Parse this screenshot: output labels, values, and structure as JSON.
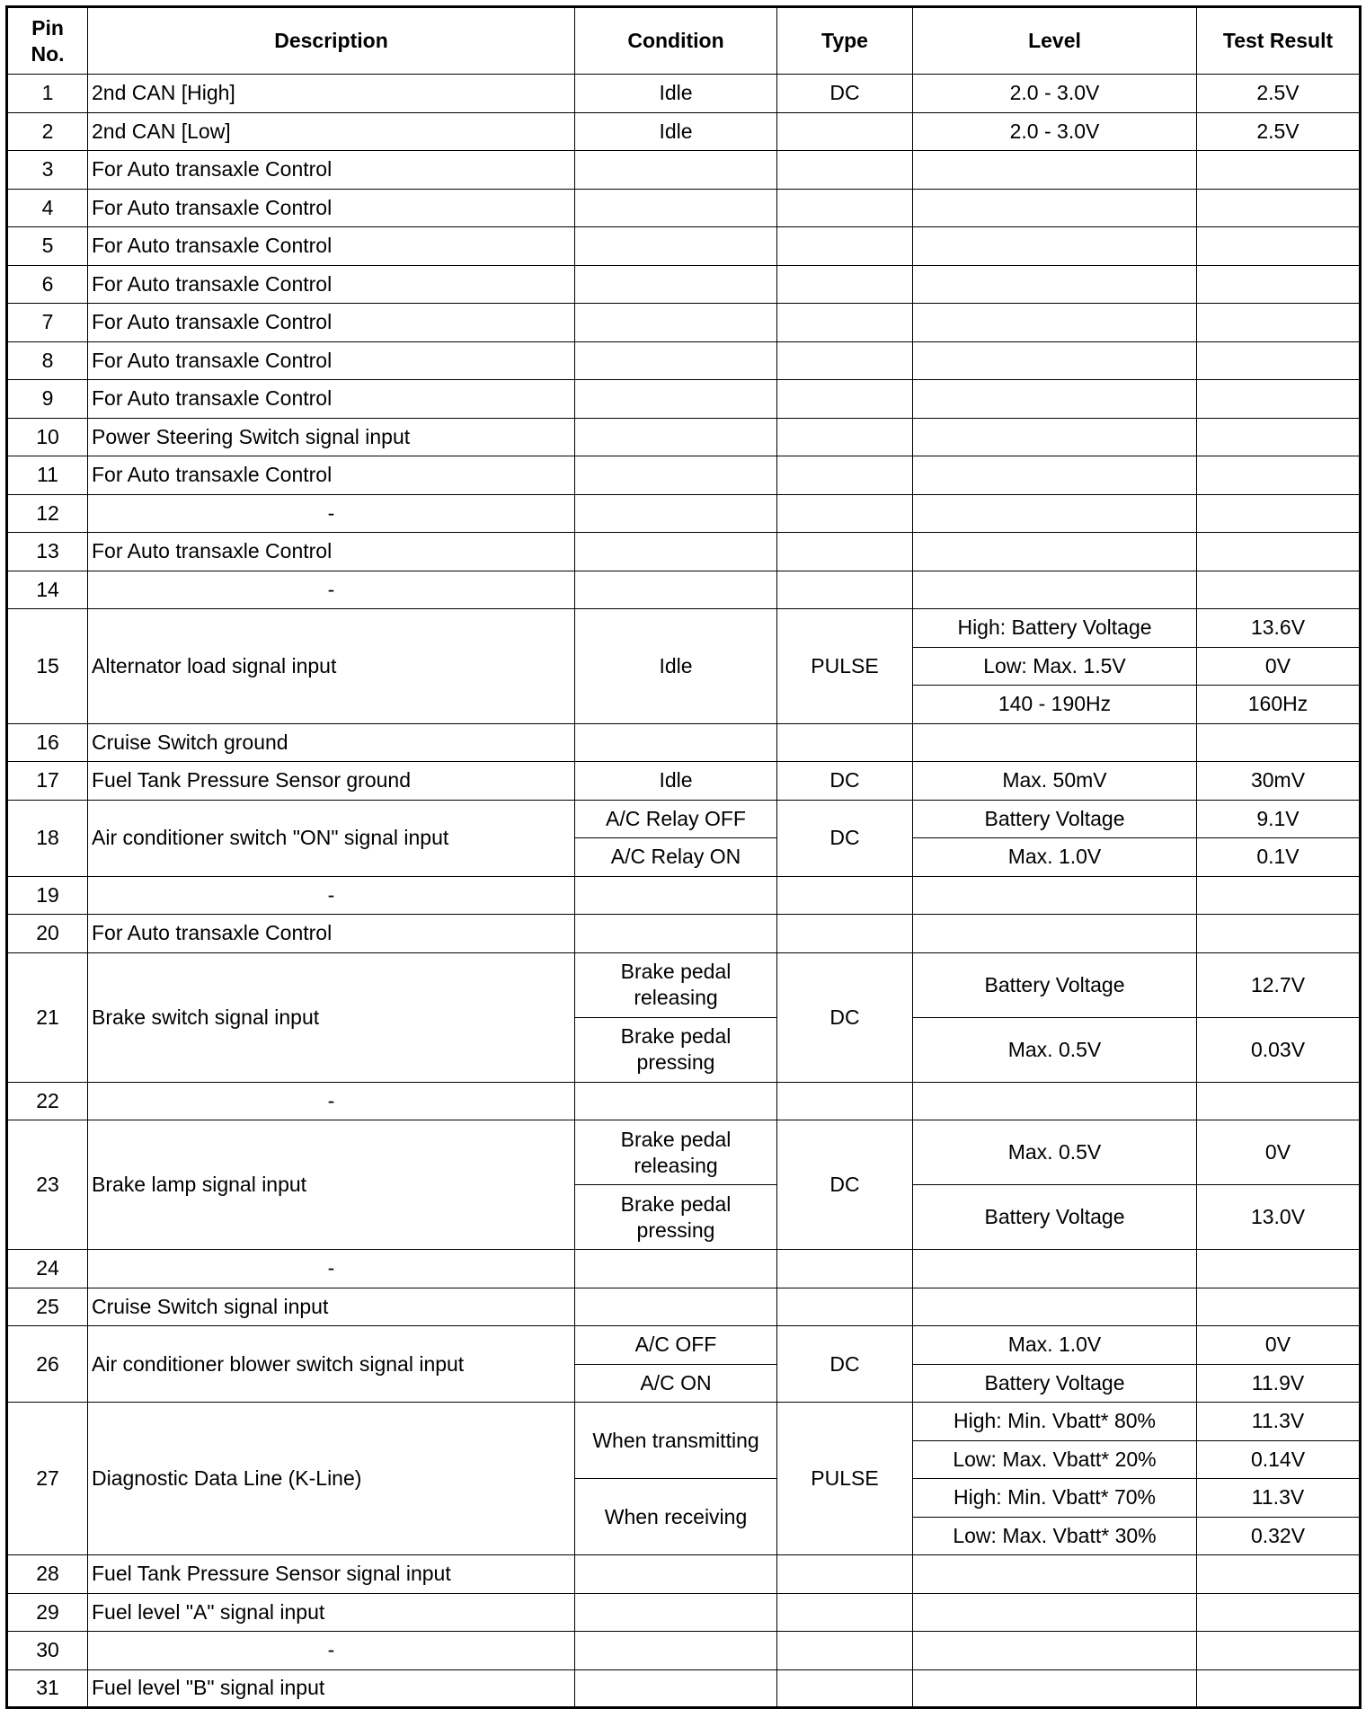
{
  "headers": {
    "pin": "Pin No.",
    "description": "Description",
    "condition": "Condition",
    "type": "Type",
    "level": "Level",
    "result": "Test Result"
  },
  "rows": [
    {
      "pin": "1",
      "description": "2nd CAN [High]",
      "type": "DC",
      "conditions": [
        "Idle"
      ],
      "levels": [
        {
          "level": "2.0 - 3.0V",
          "result": "2.5V"
        }
      ]
    },
    {
      "pin": "2",
      "description": "2nd CAN [Low]",
      "type": "",
      "conditions": [
        "Idle"
      ],
      "levels": [
        {
          "level": "2.0 - 3.0V",
          "result": "2.5V"
        }
      ]
    },
    {
      "pin": "3",
      "description": "For Auto transaxle Control",
      "type": "",
      "conditions": [
        ""
      ],
      "levels": [
        {
          "level": "",
          "result": ""
        }
      ]
    },
    {
      "pin": "4",
      "description": "For Auto transaxle Control",
      "type": "",
      "conditions": [
        ""
      ],
      "levels": [
        {
          "level": "",
          "result": ""
        }
      ]
    },
    {
      "pin": "5",
      "description": "For Auto transaxle Control",
      "type": "",
      "conditions": [
        ""
      ],
      "levels": [
        {
          "level": "",
          "result": ""
        }
      ]
    },
    {
      "pin": "6",
      "description": "For Auto transaxle Control",
      "type": "",
      "conditions": [
        ""
      ],
      "levels": [
        {
          "level": "",
          "result": ""
        }
      ]
    },
    {
      "pin": "7",
      "description": "For Auto transaxle Control",
      "type": "",
      "conditions": [
        ""
      ],
      "levels": [
        {
          "level": "",
          "result": ""
        }
      ]
    },
    {
      "pin": "8",
      "description": "For Auto transaxle Control",
      "type": "",
      "conditions": [
        ""
      ],
      "levels": [
        {
          "level": "",
          "result": ""
        }
      ]
    },
    {
      "pin": "9",
      "description": "For Auto transaxle Control",
      "type": "",
      "conditions": [
        ""
      ],
      "levels": [
        {
          "level": "",
          "result": ""
        }
      ]
    },
    {
      "pin": "10",
      "description": "Power Steering Switch signal input",
      "type": "",
      "conditions": [
        ""
      ],
      "levels": [
        {
          "level": "",
          "result": ""
        }
      ]
    },
    {
      "pin": "11",
      "description": "For Auto transaxle Control",
      "type": "",
      "conditions": [
        ""
      ],
      "levels": [
        {
          "level": "",
          "result": ""
        }
      ]
    },
    {
      "pin": "12",
      "description": "-",
      "type": "",
      "conditions": [
        ""
      ],
      "levels": [
        {
          "level": "",
          "result": ""
        }
      ]
    },
    {
      "pin": "13",
      "description": "For Auto transaxle Control",
      "type": "",
      "conditions": [
        ""
      ],
      "levels": [
        {
          "level": "",
          "result": ""
        }
      ]
    },
    {
      "pin": "14",
      "description": "-",
      "type": "",
      "conditions": [
        ""
      ],
      "levels": [
        {
          "level": "",
          "result": ""
        }
      ]
    },
    {
      "pin": "15",
      "description": "Alternator load signal input",
      "type": "PULSE",
      "conditions": [
        "Idle"
      ],
      "levels": [
        {
          "level": "High: Battery Voltage",
          "result": "13.6V"
        },
        {
          "level": "Low: Max. 1.5V",
          "result": "0V"
        },
        {
          "level": "140 - 190Hz",
          "result": "160Hz"
        }
      ]
    },
    {
      "pin": "16",
      "description": "Cruise Switch ground",
      "type": "",
      "conditions": [
        ""
      ],
      "levels": [
        {
          "level": "",
          "result": ""
        }
      ]
    },
    {
      "pin": "17",
      "description": "Fuel Tank Pressure Sensor ground",
      "type": "DC",
      "conditions": [
        "Idle"
      ],
      "levels": [
        {
          "level": "Max. 50mV",
          "result": "30mV"
        }
      ]
    },
    {
      "pin": "18",
      "description": "Air conditioner switch \"ON\" signal input",
      "type": "DC",
      "conditions": [
        "A/C Relay OFF",
        "A/C Relay ON"
      ],
      "levels": [
        {
          "level": "Battery Voltage",
          "result": "9.1V"
        },
        {
          "level": "Max. 1.0V",
          "result": "0.1V"
        }
      ]
    },
    {
      "pin": "19",
      "description": "-",
      "type": "",
      "conditions": [
        ""
      ],
      "levels": [
        {
          "level": "",
          "result": ""
        }
      ]
    },
    {
      "pin": "20",
      "description": "For Auto transaxle Control",
      "type": "",
      "conditions": [
        ""
      ],
      "levels": [
        {
          "level": "",
          "result": ""
        }
      ]
    },
    {
      "pin": "21",
      "description": "Brake switch signal input",
      "type": "DC",
      "conditions": [
        "Brake pedal releasing",
        "Brake pedal pressing"
      ],
      "levels": [
        {
          "level": "Battery Voltage",
          "result": "12.7V"
        },
        {
          "level": "Max. 0.5V",
          "result": "0.03V"
        }
      ]
    },
    {
      "pin": "22",
      "description": "-",
      "type": "",
      "conditions": [
        ""
      ],
      "levels": [
        {
          "level": "",
          "result": ""
        }
      ]
    },
    {
      "pin": "23",
      "description": "Brake lamp signal input",
      "type": "DC",
      "conditions": [
        "Brake pedal releasing",
        "Brake pedal pressing"
      ],
      "levels": [
        {
          "level": "Max. 0.5V",
          "result": "0V"
        },
        {
          "level": "Battery Voltage",
          "result": "13.0V"
        }
      ]
    },
    {
      "pin": "24",
      "description": "-",
      "type": "",
      "conditions": [
        ""
      ],
      "levels": [
        {
          "level": "",
          "result": ""
        }
      ]
    },
    {
      "pin": "25",
      "description": "Cruise Switch signal input",
      "type": "",
      "conditions": [
        ""
      ],
      "levels": [
        {
          "level": "",
          "result": ""
        }
      ]
    },
    {
      "pin": "26",
      "description": "Air conditioner blower switch signal input",
      "type": "DC",
      "conditions": [
        "A/C OFF",
        "A/C ON"
      ],
      "levels": [
        {
          "level": "Max. 1.0V",
          "result": "0V"
        },
        {
          "level": "Battery Voltage",
          "result": "11.9V"
        }
      ]
    },
    {
      "pin": "27",
      "description": "Diagnostic Data Line (K-Line)",
      "type": "PULSE",
      "conditions": [
        "When transmitting",
        "When receiving"
      ],
      "levels": [
        {
          "level": "High: Min. Vbatt* 80%",
          "result": "11.3V"
        },
        {
          "level": "Low: Max. Vbatt* 20%",
          "result": "0.14V"
        },
        {
          "level": "High: Min. Vbatt* 70%",
          "result": "11.3V"
        },
        {
          "level": "Low: Max. Vbatt* 30%",
          "result": "0.32V"
        }
      ]
    },
    {
      "pin": "28",
      "description": "Fuel Tank Pressure Sensor signal input",
      "type": "",
      "conditions": [
        ""
      ],
      "levels": [
        {
          "level": "",
          "result": ""
        }
      ]
    },
    {
      "pin": "29",
      "description": "Fuel level \"A\" signal input",
      "type": "",
      "conditions": [
        ""
      ],
      "levels": [
        {
          "level": "",
          "result": ""
        }
      ]
    },
    {
      "pin": "30",
      "description": "-",
      "type": "",
      "conditions": [
        ""
      ],
      "levels": [
        {
          "level": "",
          "result": ""
        }
      ]
    },
    {
      "pin": "31",
      "description": "Fuel level \"B\" signal input",
      "type": "",
      "conditions": [
        ""
      ],
      "levels": [
        {
          "level": "",
          "result": ""
        }
      ]
    }
  ]
}
